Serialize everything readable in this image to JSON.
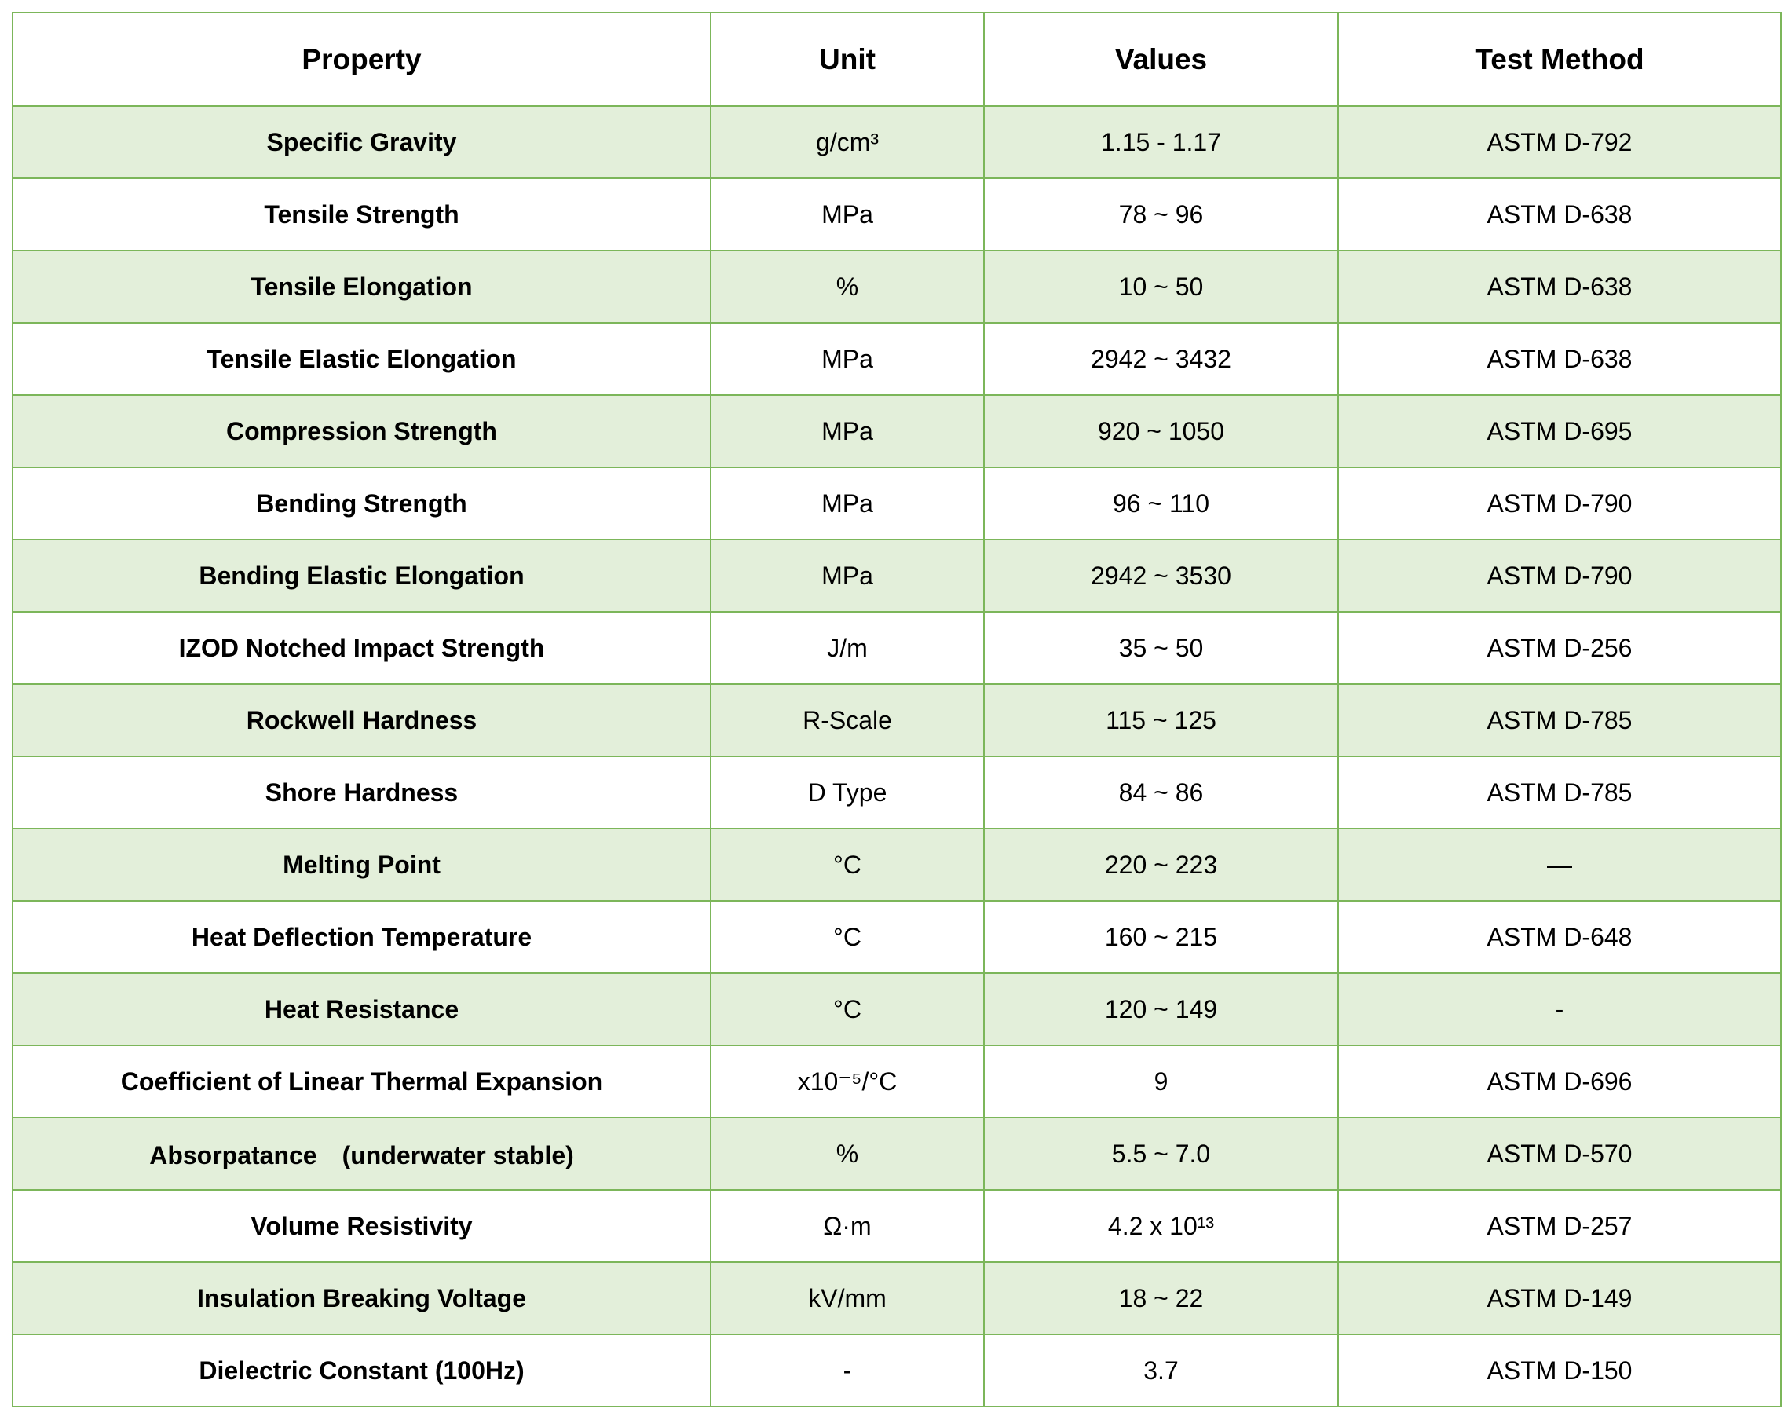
{
  "table": {
    "headers": [
      "Property",
      "Unit",
      "Values",
      "Test Method"
    ],
    "rows": [
      {
        "property": "Specific Gravity",
        "unit": "g/cm³",
        "values": "1.15 - 1.17",
        "test_method": "ASTM D-792"
      },
      {
        "property": "Tensile Strength",
        "unit": "MPa",
        "values": "78 ~ 96",
        "test_method": "ASTM D-638"
      },
      {
        "property": "Tensile Elongation",
        "unit": "%",
        "values": "10 ~ 50",
        "test_method": "ASTM D-638"
      },
      {
        "property": "Tensile Elastic Elongation",
        "unit": "MPa",
        "values": "2942 ~ 3432",
        "test_method": "ASTM D-638"
      },
      {
        "property": "Compression Strength",
        "unit": "MPa",
        "values": "920 ~ 1050",
        "test_method": "ASTM D-695"
      },
      {
        "property": "Bending Strength",
        "unit": "MPa",
        "values": "96 ~ 110",
        "test_method": "ASTM D-790"
      },
      {
        "property": "Bending Elastic Elongation",
        "unit": "MPa",
        "values": "2942 ~ 3530",
        "test_method": "ASTM D-790"
      },
      {
        "property": "IZOD Notched Impact Strength",
        "unit": "J/m",
        "values": "35 ~ 50",
        "test_method": "ASTM D-256"
      },
      {
        "property": "Rockwell Hardness",
        "unit": "R-Scale",
        "values": "115 ~ 125",
        "test_method": "ASTM D-785"
      },
      {
        "property": "Shore Hardness",
        "unit": "D Type",
        "values": "84 ~ 86",
        "test_method": "ASTM D-785"
      },
      {
        "property": "Melting Point",
        "unit": "°C",
        "values": "220 ~ 223",
        "test_method": "—"
      },
      {
        "property": "Heat Deflection Temperature",
        "unit": "°C",
        "values": "160 ~ 215",
        "test_method": "ASTM D-648"
      },
      {
        "property": "Heat Resistance",
        "unit": "°C",
        "values": "120 ~ 149",
        "test_method": "-"
      },
      {
        "property": "Coefficient of Linear Thermal Expansion",
        "unit": "x10⁻⁵/°C",
        "values": "9",
        "test_method": "ASTM D-696"
      },
      {
        "property": "Absorpatance　(underwater stable)",
        "unit": "%",
        "values": "5.5 ~ 7.0",
        "test_method": "ASTM D-570"
      },
      {
        "property": "Volume Resistivity",
        "unit": "Ω·m",
        "values": "4.2 x 10¹³",
        "test_method": "ASTM D-257"
      },
      {
        "property": "Insulation Breaking Voltage",
        "unit": "kV/mm",
        "values": "18 ~ 22",
        "test_method": "ASTM D-149"
      },
      {
        "property": "Dielectric Constant (100Hz)",
        "unit": "-",
        "values": "3.7",
        "test_method": "ASTM D-150"
      }
    ]
  },
  "colors": {
    "border": "#7cb65a",
    "stripe": "#e3efda",
    "background": "#ffffff"
  }
}
